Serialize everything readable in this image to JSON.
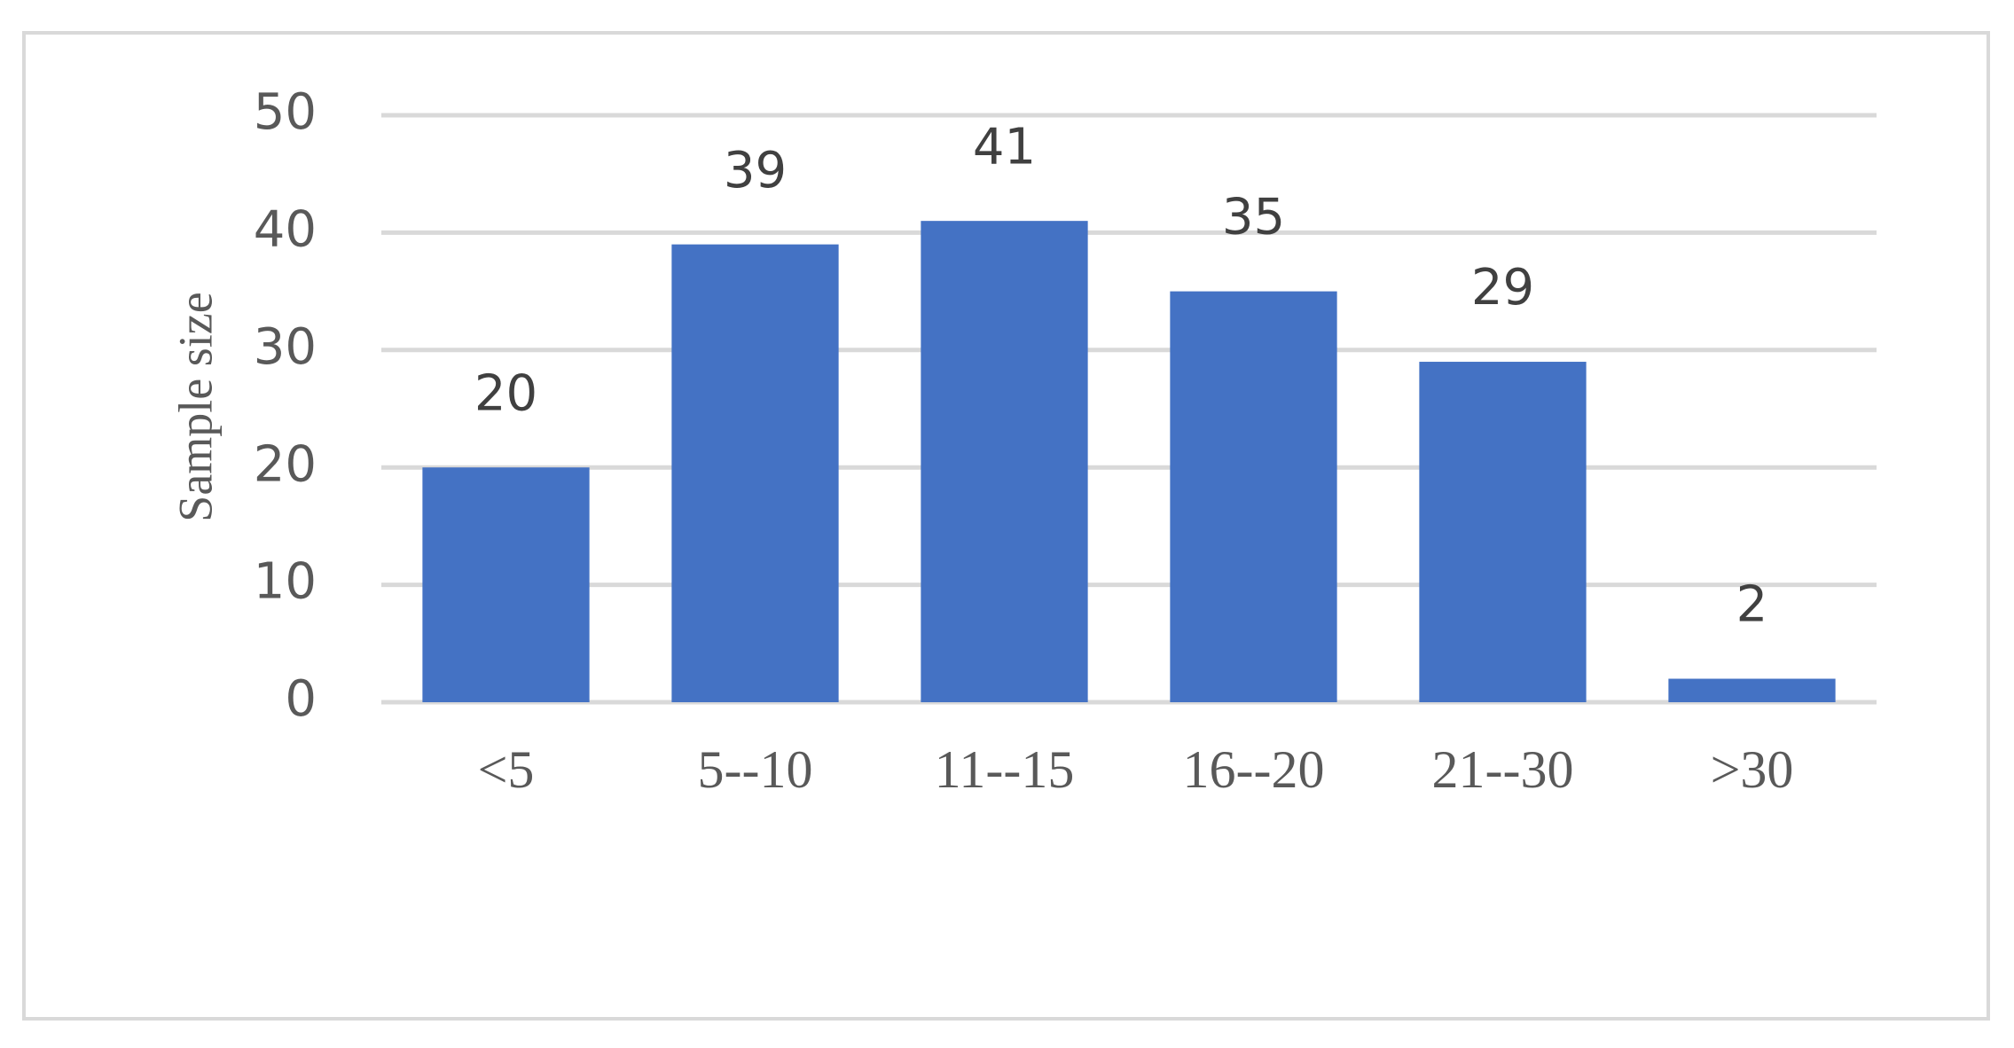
{
  "chart_data": {
    "type": "bar",
    "y_label": "Sample size",
    "categories": [
      "<5",
      "5--10",
      "11--15",
      "16--20",
      "21--30",
      ">30"
    ],
    "values": [
      20,
      39,
      41,
      35,
      29,
      2
    ],
    "color": "#4472c4",
    "ylim": [
      0,
      50
    ],
    "yticks": [
      0,
      10,
      20,
      30,
      40,
      50
    ],
    "grid": true,
    "data_labels": true
  }
}
